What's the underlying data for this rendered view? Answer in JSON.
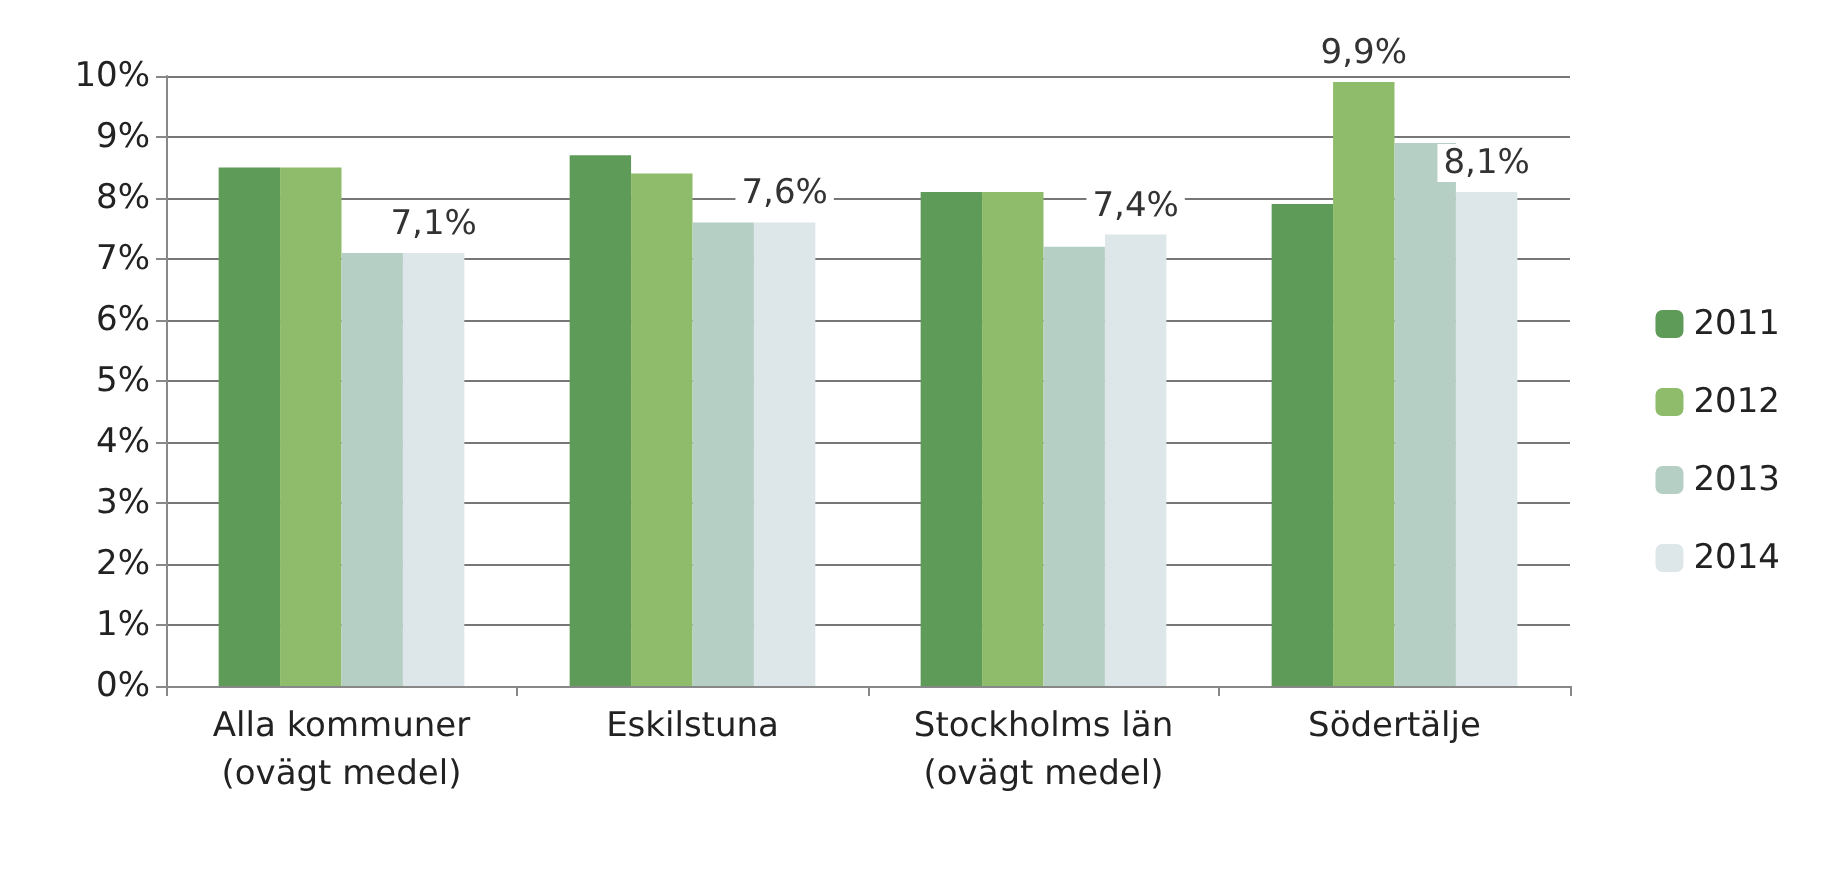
{
  "chart_data": {
    "type": "bar",
    "categories": [
      "Alla kommuner\n(ovägt medel)",
      "Eskilstuna",
      "Stockholms län\n(ovägt medel)",
      "Södertälje"
    ],
    "series": [
      {
        "name": "2011",
        "color": "#5e9a58",
        "values": [
          8.5,
          8.7,
          8.1,
          7.9
        ]
      },
      {
        "name": "2012",
        "color": "#8fbc6a",
        "values": [
          8.5,
          8.4,
          8.1,
          9.9
        ],
        "value_labels": [
          null,
          null,
          null,
          "9,9%"
        ]
      },
      {
        "name": "2013",
        "color": "#b5cfc4",
        "values": [
          7.1,
          7.6,
          7.2,
          8.9
        ]
      },
      {
        "name": "2014",
        "color": "#dde6e8",
        "values": [
          7.1,
          7.6,
          7.4,
          8.1
        ],
        "value_labels": [
          "7,1%",
          "7,6%",
          "7,4%",
          "8,1%"
        ]
      }
    ],
    "ylim": [
      0,
      10
    ],
    "yticks": [
      {
        "value": 0,
        "label": "0%"
      },
      {
        "value": 1,
        "label": "1%"
      },
      {
        "value": 2,
        "label": "2%"
      },
      {
        "value": 3,
        "label": "3%"
      },
      {
        "value": 4,
        "label": "4%"
      },
      {
        "value": 5,
        "label": "5%"
      },
      {
        "value": 6,
        "label": "6%"
      },
      {
        "value": 7,
        "label": "7%"
      },
      {
        "value": 8,
        "label": "8%"
      },
      {
        "value": 9,
        "label": "9%"
      },
      {
        "value": 10,
        "label": "10%"
      }
    ],
    "grid": "y",
    "legend": "right"
  }
}
